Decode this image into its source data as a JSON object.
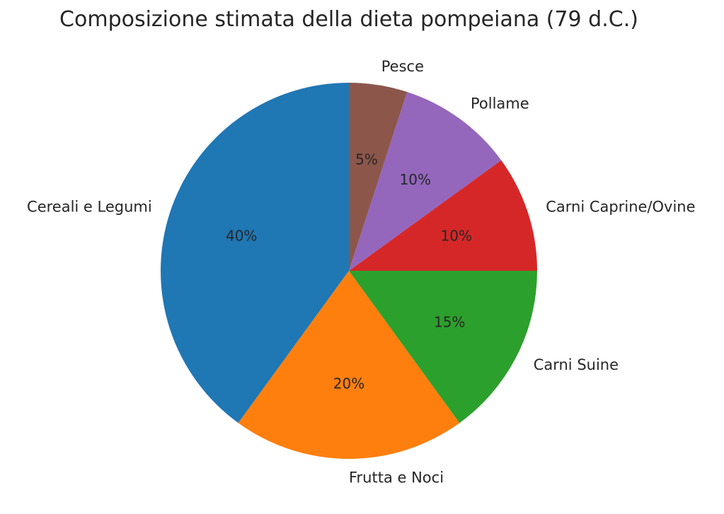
{
  "title": "Composizione stimata della dieta pompeiana (79 d.C.)",
  "chart_data": {
    "type": "pie",
    "title": "Composizione stimata della dieta pompeiana (79 d.C.)",
    "slices": [
      {
        "label": "Cereali e Legumi",
        "value": 40,
        "pct_label": "40%",
        "color": "#1f77b4"
      },
      {
        "label": "Frutta e Noci",
        "value": 20,
        "pct_label": "20%",
        "color": "#ff7f0e"
      },
      {
        "label": "Carni Suine",
        "value": 15,
        "pct_label": "15%",
        "color": "#2ca02c"
      },
      {
        "label": "Carni Caprine/Ovine",
        "value": 10,
        "pct_label": "10%",
        "color": "#d62728"
      },
      {
        "label": "Pollame",
        "value": 10,
        "pct_label": "10%",
        "color": "#9467bd"
      },
      {
        "label": "Pesce",
        "value": 5,
        "pct_label": "5%",
        "color": "#8c564b"
      }
    ],
    "start_angle": 90,
    "direction": "counterclockwise",
    "label_distance": 1.1,
    "pct_distance": 0.6,
    "background": "#ffffff",
    "text_color": "#262626",
    "legend": "none",
    "grid": false
  }
}
